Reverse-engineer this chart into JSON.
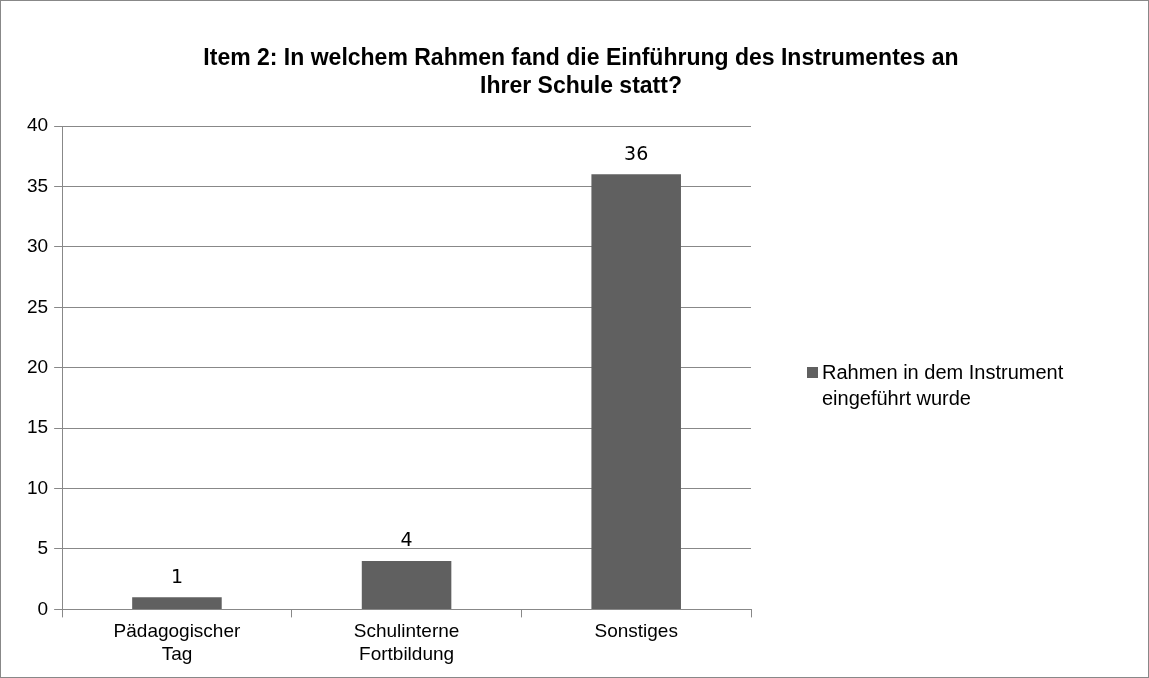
{
  "chart_data": {
    "type": "bar",
    "title": "Item 2: In welchem Rahmen fand die Einführung des Instrumentes an Ihrer Schule statt?",
    "categories": [
      "Pädagogischer Tag",
      "Schulinterne Fortbildung",
      "Sonstiges"
    ],
    "series": [
      {
        "name": "Rahmen in dem Instrument eingeführt wurde",
        "color": "#606060",
        "values": [
          1,
          4,
          36
        ]
      }
    ],
    "ylim": [
      0,
      40
    ],
    "yticks": [
      0,
      5,
      10,
      15,
      20,
      25,
      30,
      35,
      40
    ],
    "grid": "y",
    "legend": "right",
    "data_labels": true
  }
}
